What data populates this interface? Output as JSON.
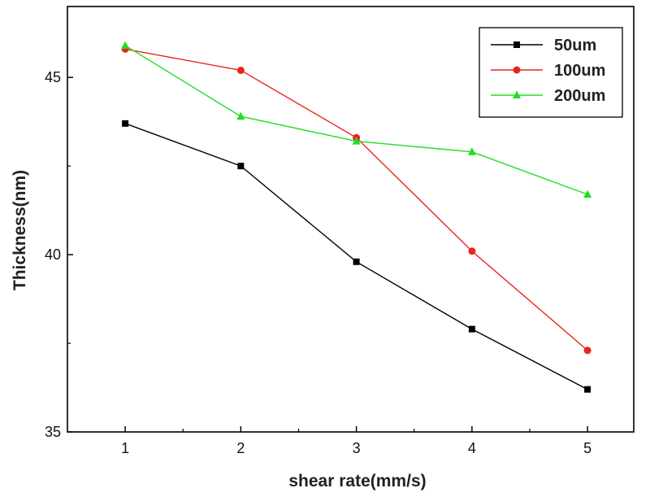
{
  "chart_data": {
    "type": "line",
    "title": "",
    "xlabel": "shear rate(mm/s)",
    "ylabel": "Thickness(nm)",
    "x": [
      1,
      2,
      3,
      4,
      5
    ],
    "xlim": [
      0.5,
      5.4
    ],
    "ylim": [
      35,
      47
    ],
    "xticks": [
      1,
      2,
      3,
      4,
      5
    ],
    "yticks": [
      35,
      40,
      45
    ],
    "grid": false,
    "legend_position": "top-right",
    "series": [
      {
        "name": "50um",
        "color": "#000000",
        "marker": "square",
        "values": [
          43.7,
          42.5,
          39.8,
          37.9,
          36.2
        ]
      },
      {
        "name": "100um",
        "color": "#e8251f",
        "marker": "circle",
        "values": [
          45.8,
          45.2,
          43.3,
          40.1,
          37.3
        ]
      },
      {
        "name": "200um",
        "color": "#22dd22",
        "marker": "triangle",
        "values": [
          45.9,
          43.9,
          43.2,
          42.9,
          41.7
        ]
      }
    ]
  }
}
